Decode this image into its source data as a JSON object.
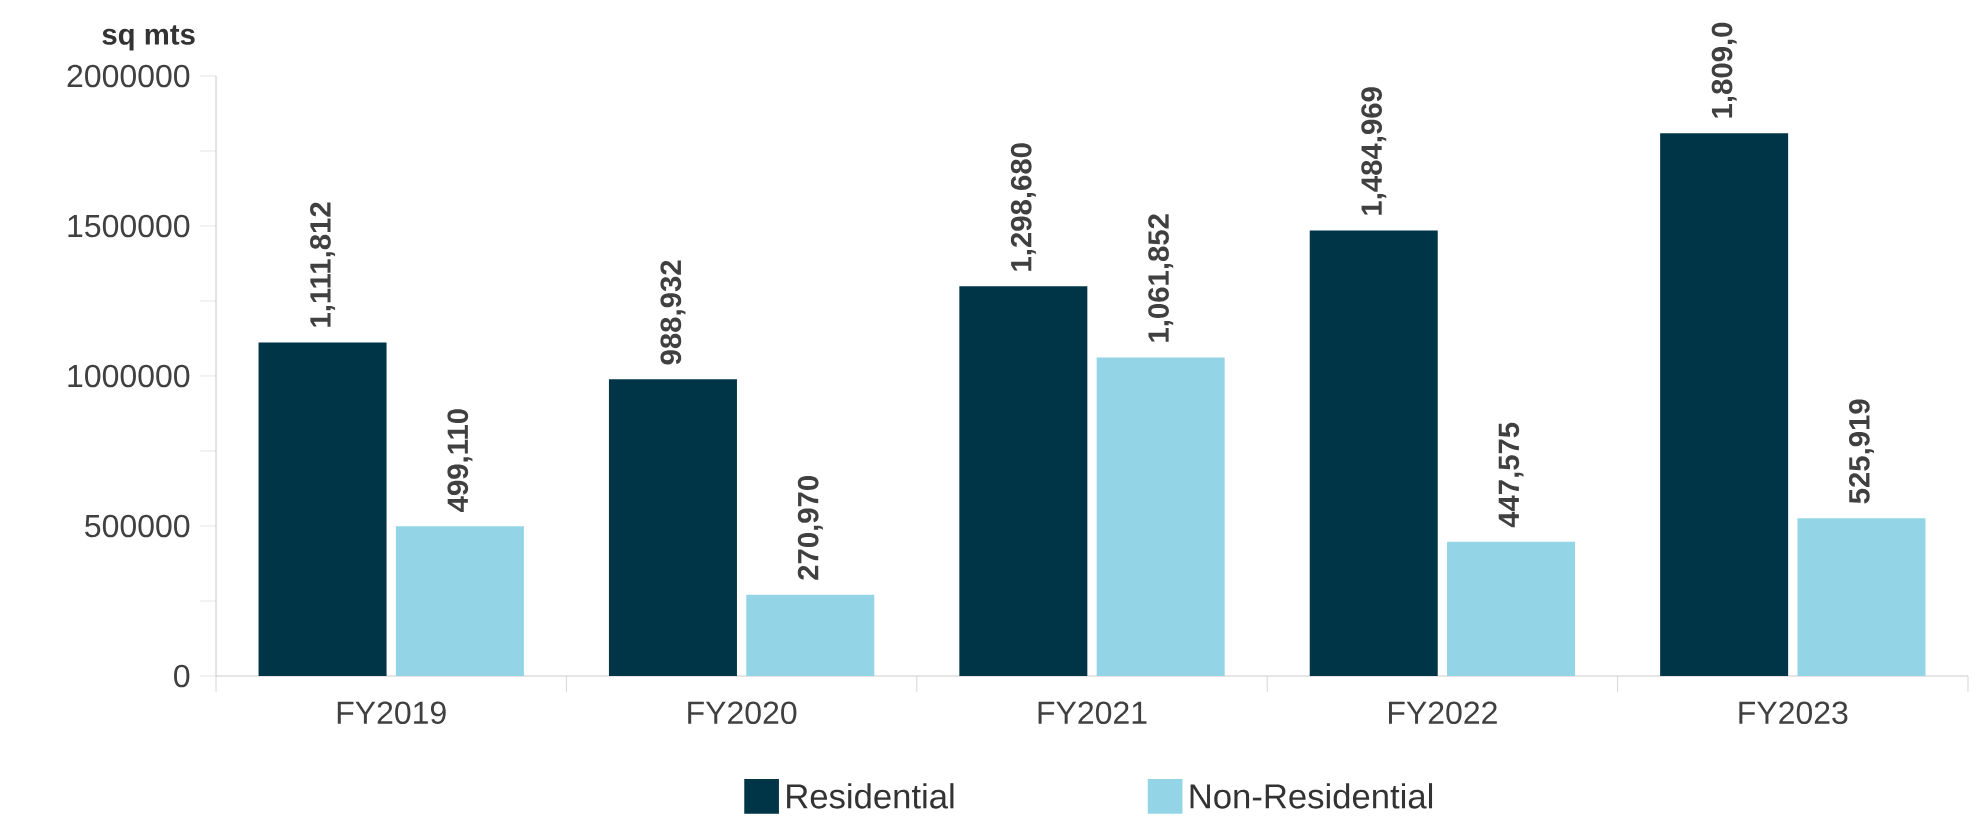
{
  "chart_data": {
    "type": "bar",
    "ylabel": "sq mts",
    "categories": [
      "FY2019",
      "FY2020",
      "FY2021",
      "FY2022",
      "FY2023"
    ],
    "series": [
      {
        "name": "Residential",
        "color": "#003547",
        "values": [
          1111812,
          988932,
          1298680,
          1484969,
          1809000
        ],
        "value_labels": [
          "1,111,812",
          "988,932",
          "1,298,680",
          "1,484,969",
          "1,809,0"
        ]
      },
      {
        "name": "Non-Residential",
        "color": "#93d4e6",
        "values": [
          499110,
          270970,
          1061852,
          447575,
          525919
        ],
        "value_labels": [
          "499,110",
          "270,970",
          "1,061,852",
          "447,575",
          "525,919"
        ]
      }
    ],
    "ylim": [
      0,
      2000000
    ],
    "yticks": [
      0,
      {
        "value": 250000,
        "label": null
      },
      500000,
      {
        "value": 750000,
        "label": null
      },
      1000000,
      {
        "value": 1250000,
        "label": null
      },
      1500000,
      {
        "value": 1750000,
        "label": null
      },
      2000000
    ],
    "grid": false,
    "legend": "bottom"
  }
}
